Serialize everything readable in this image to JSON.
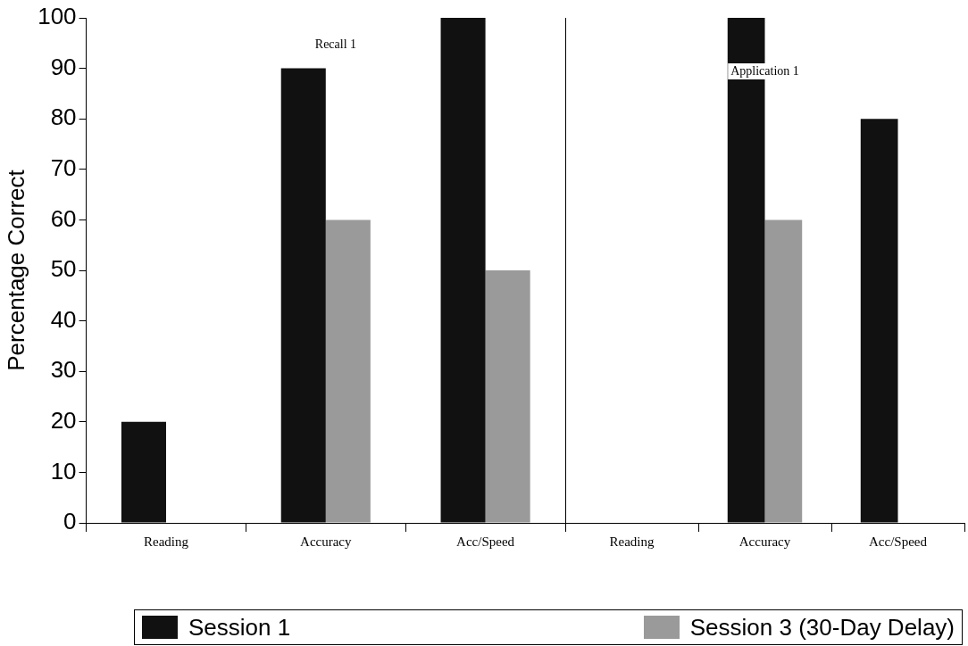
{
  "chart_data": [
    {
      "type": "bar",
      "ylabel": "Percentage Correct",
      "categories": [
        "Reading",
        "Accuracy",
        "Acc/Speed"
      ],
      "series": [
        {
          "name": "Session 1",
          "color": "#111111",
          "values": [
            20,
            90,
            100
          ]
        },
        {
          "name": "Session 3 (30-Day Delay)",
          "color": "#9a9a9a",
          "values": [
            0,
            60,
            50
          ]
        }
      ],
      "ylim": [
        0,
        100
      ],
      "yticks": [
        0,
        10,
        20,
        30,
        40,
        50,
        60,
        70,
        80,
        90,
        100
      ],
      "grid": false,
      "legend": "bottom",
      "annotations": [
        "Recall 1"
      ]
    },
    {
      "type": "bar",
      "categories": [
        "Reading",
        "Accuracy",
        "Acc/Speed"
      ],
      "series": [
        {
          "color": "#111111",
          "values": [
            0,
            100,
            80
          ]
        },
        {
          "color": "#9a9a9a",
          "values": [
            0,
            60,
            0
          ]
        }
      ],
      "ylim": [
        0,
        100
      ],
      "yticks": [
        0,
        10,
        20,
        30,
        40,
        50,
        60,
        70,
        80,
        90,
        100
      ],
      "grid": false,
      "tick_labels": "x",
      "annotations": [
        "Application 1"
      ]
    }
  ]
}
